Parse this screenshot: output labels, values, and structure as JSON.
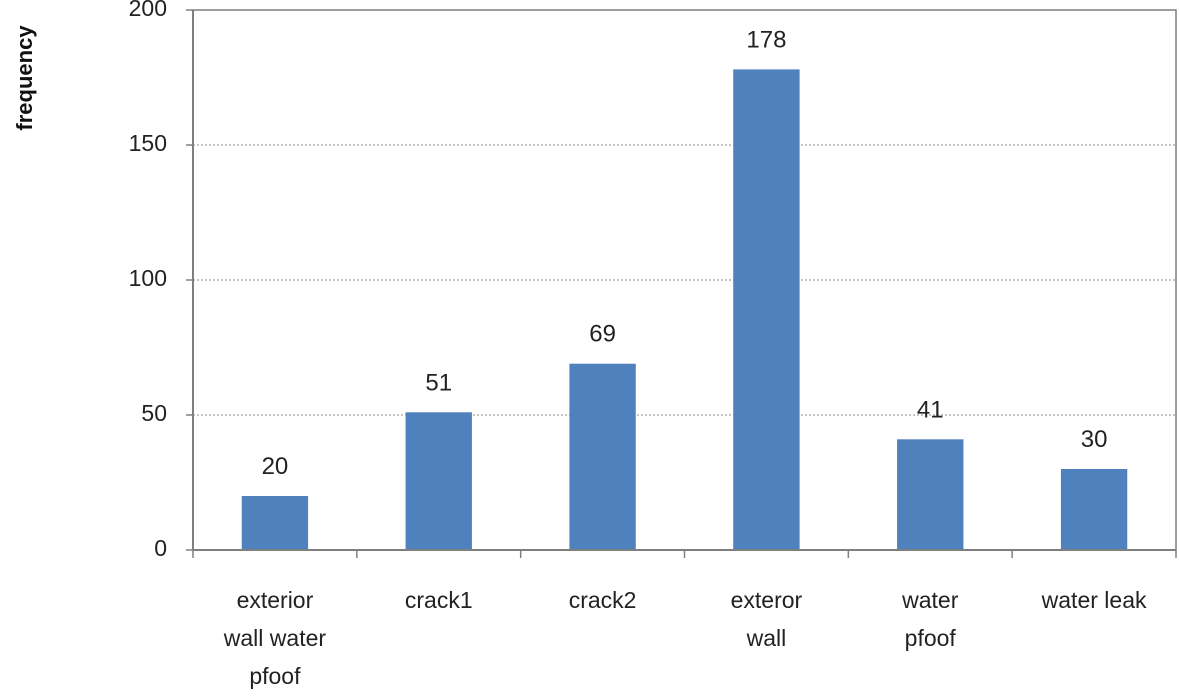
{
  "chart_data": {
    "type": "bar",
    "categories": [
      "exterior wall water pfoof",
      "crack1",
      "crack2",
      "exteror wall",
      "water pfoof",
      "water leak"
    ],
    "category_lines": [
      [
        "exterior",
        "wall water",
        "pfoof"
      ],
      [
        "crack1"
      ],
      [
        "crack2"
      ],
      [
        "exteror",
        "wall"
      ],
      [
        "water",
        "pfoof"
      ],
      [
        "water leak"
      ]
    ],
    "values": [
      20,
      51,
      69,
      178,
      41,
      30
    ],
    "data_labels": [
      "20",
      "51",
      "69",
      "178",
      "41",
      "30"
    ],
    "title": "",
    "xlabel": "",
    "ylabel": "frequency",
    "ylim": [
      0,
      200
    ],
    "yticks": [
      0,
      50,
      100,
      150,
      200
    ],
    "ytick_labels": [
      "0",
      "50",
      "100",
      "150",
      "200"
    ],
    "grid": "horizontal dotted",
    "legend": "none",
    "bar_color": "#4F81BD"
  }
}
